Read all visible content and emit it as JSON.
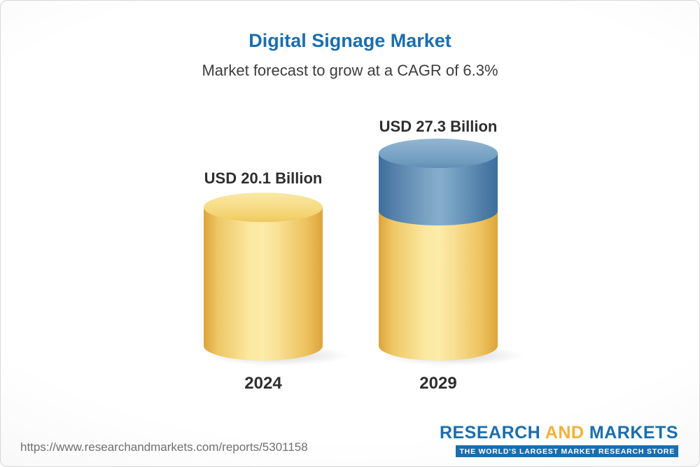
{
  "header": {
    "title": "Digital Signage Market",
    "subtitle": "Market forecast to grow at a CAGR of 6.3%"
  },
  "chart_data": {
    "type": "bar",
    "title": "Digital Signage Market",
    "subtitle": "Market forecast to grow at a CAGR of 6.3%",
    "cagr_percent": 6.3,
    "unit": "USD Billion",
    "categories": [
      "2024",
      "2029"
    ],
    "values": [
      20.1,
      27.3
    ],
    "value_labels": [
      "USD 20.1 Billion",
      "USD 27.3 Billion"
    ],
    "series_note": "2029 cylinder shows base value in yellow with growth segment (27.3 - 20.1) in blue stacked on top",
    "colors": {
      "base_bar": "#f5ce67",
      "growth_segment": "#5d8fb7",
      "title": "#1b6ead"
    },
    "legend": "none",
    "grid": false,
    "ylim": [
      0,
      30
    ]
  },
  "footer": {
    "url": "https://www.researchandmarkets.com/reports/5301158",
    "logo": {
      "research": "RESEARCH",
      "and": "AND",
      "markets": "MARKETS",
      "tagline": "THE WORLD'S LARGEST MARKET RESEARCH STORE"
    }
  }
}
